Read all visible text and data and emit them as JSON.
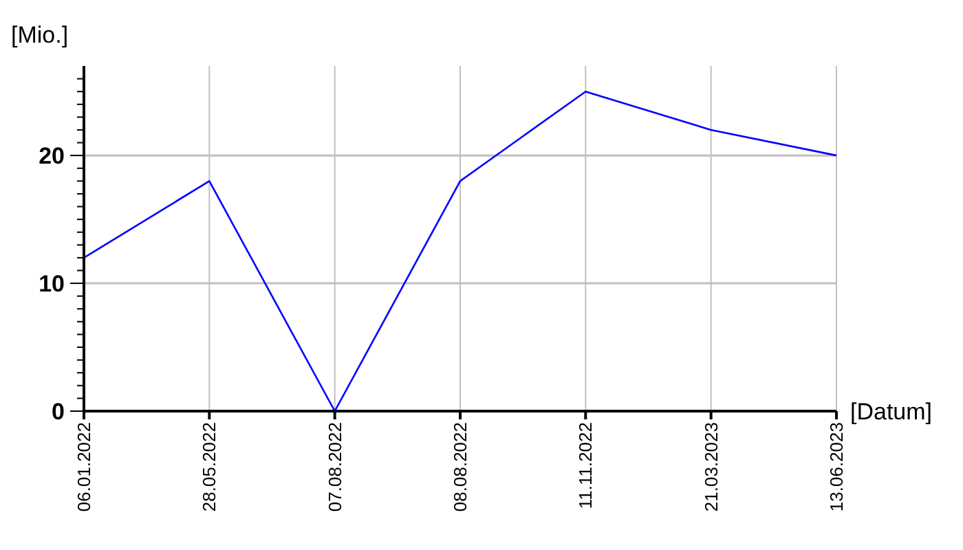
{
  "chart_data": {
    "type": "line",
    "ylabel": "[Mio.]",
    "xlabel": "[Datum]",
    "categories": [
      "06.01.2022",
      "28.05.2022",
      "07.08.2022",
      "08.08.2022",
      "11.11.2022",
      "21.03.2023",
      "13.06.2023"
    ],
    "series": [
      {
        "color": "#0000ff",
        "values": [
          12,
          18,
          0,
          18,
          25,
          22,
          20
        ]
      }
    ],
    "ylim": [
      0,
      27
    ],
    "yticks": [
      0,
      {
        "value": 1,
        "label": null
      },
      {
        "value": 2,
        "label": null
      },
      {
        "value": 3,
        "label": null
      },
      {
        "value": 4,
        "label": null
      },
      {
        "value": 5,
        "label": null
      },
      {
        "value": 6,
        "label": null
      },
      {
        "value": 7,
        "label": null
      },
      {
        "value": 8,
        "label": null
      },
      {
        "value": 9,
        "label": null
      },
      10,
      {
        "value": 11,
        "label": null
      },
      {
        "value": 12,
        "label": null
      },
      {
        "value": 13,
        "label": null
      },
      {
        "value": 14,
        "label": null
      },
      {
        "value": 15,
        "label": null
      },
      {
        "value": 16,
        "label": null
      },
      {
        "value": 17,
        "label": null
      },
      {
        "value": 18,
        "label": null
      },
      {
        "value": 19,
        "label": null
      },
      20,
      {
        "value": 21,
        "label": null
      },
      {
        "value": 22,
        "label": null
      },
      {
        "value": 23,
        "label": null
      },
      {
        "value": 24,
        "label": null
      },
      {
        "value": 25,
        "label": null
      },
      {
        "value": 26,
        "label": null
      }
    ],
    "grid": true,
    "marker": "none",
    "line_style": "solid"
  }
}
